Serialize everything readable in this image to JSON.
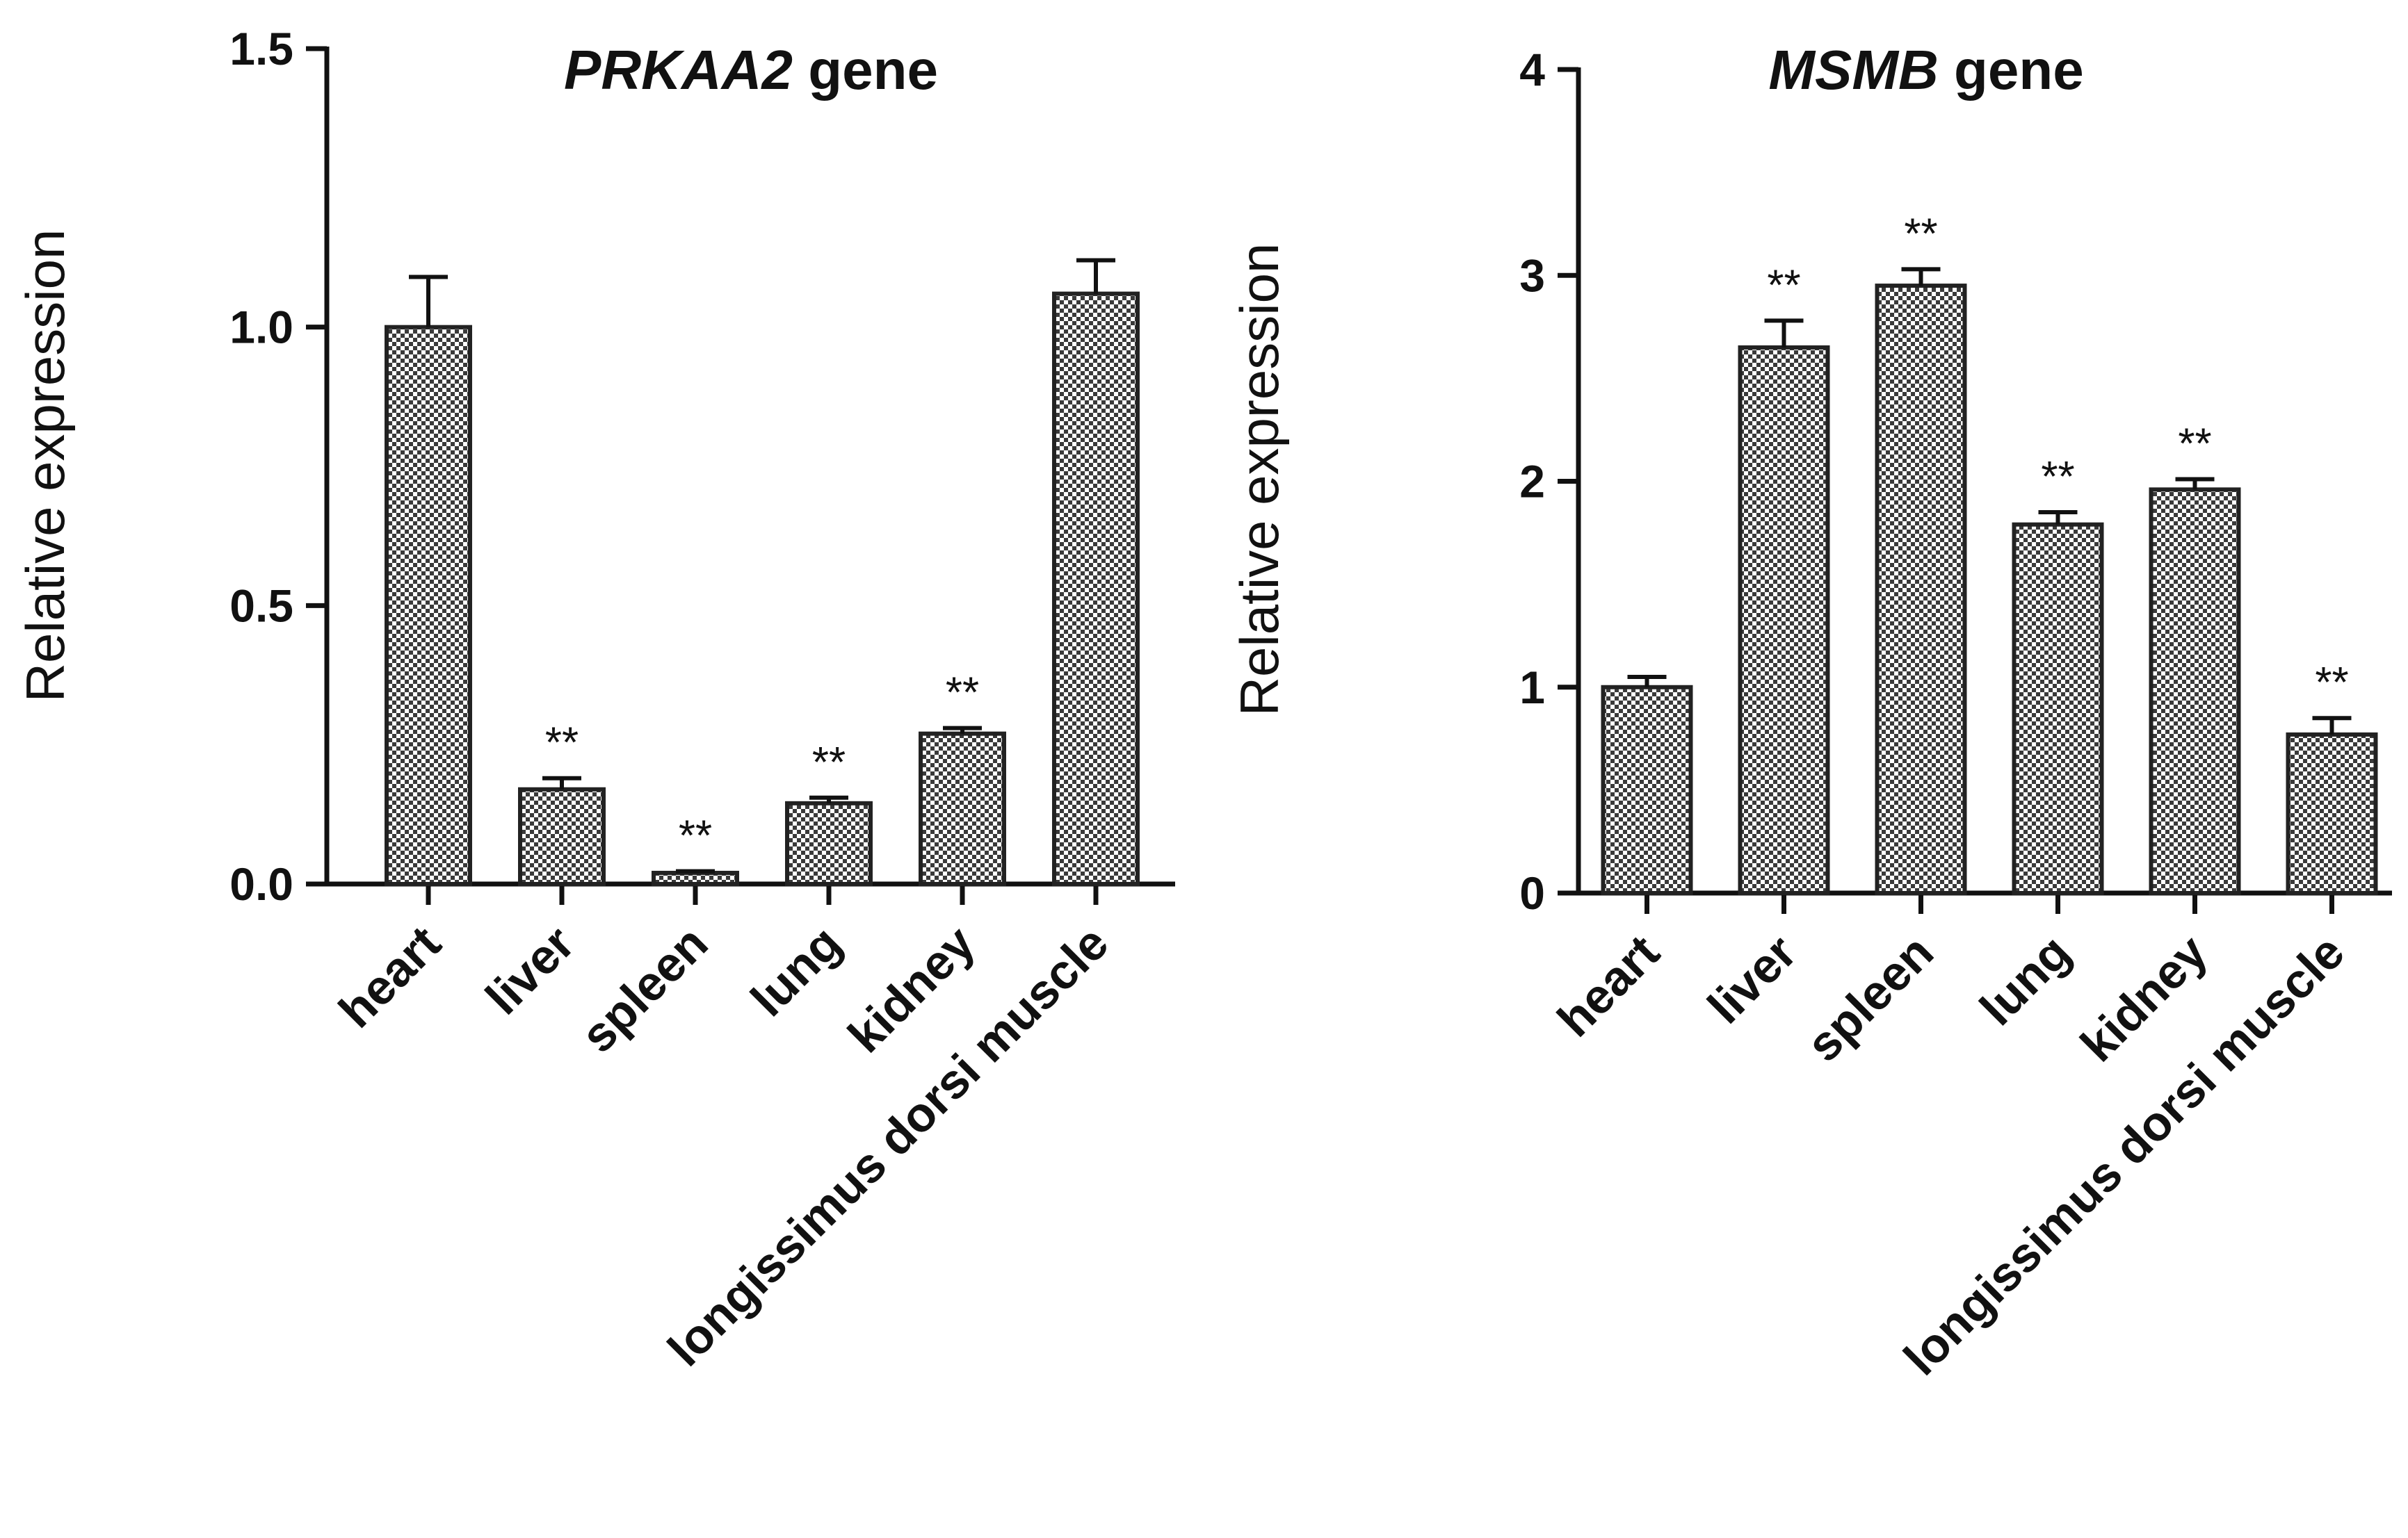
{
  "figure": "Relative expression of PRKAA2 and MSMB genes across tissues",
  "chart_data": [
    {
      "type": "bar",
      "title_italic": "PRKAA2",
      "title_rest": " gene",
      "ylabel": "Relative expression",
      "xlabel": "",
      "ylim": [
        0,
        1.5
      ],
      "yticks": [
        0.0,
        0.5,
        1.0,
        1.5
      ],
      "ytick_labels": [
        "0.0",
        "0.5",
        "1.0",
        "1.5"
      ],
      "categories": [
        "heart",
        "liver",
        "spleen",
        "lung",
        "kidney",
        "longissimus dorsi muscle"
      ],
      "values": [
        1.0,
        0.17,
        0.02,
        0.145,
        0.27,
        1.06
      ],
      "errors": [
        0.09,
        0.02,
        0.003,
        0.01,
        0.01,
        0.06
      ],
      "significance": [
        "",
        "**",
        "**",
        "**",
        "**",
        ""
      ],
      "colors": {
        "axis": "#111111",
        "bar_fill": "#9a9a9a"
      }
    },
    {
      "type": "bar",
      "title_italic": "MSMB",
      "title_rest": " gene",
      "ylabel": "Relative expression",
      "xlabel": "",
      "ylim": [
        0,
        4
      ],
      "yticks": [
        0,
        1,
        2,
        3,
        4
      ],
      "ytick_labels": [
        "0",
        "1",
        "2",
        "3",
        "4"
      ],
      "categories": [
        "heart",
        "liver",
        "spleen",
        "lung",
        "kidney",
        "longissimus dorsi muscle"
      ],
      "values": [
        1.0,
        2.65,
        2.95,
        1.79,
        1.96,
        0.77
      ],
      "errors": [
        0.05,
        0.13,
        0.08,
        0.06,
        0.05,
        0.08
      ],
      "significance": [
        "",
        "**",
        "**",
        "**",
        "**",
        "**"
      ],
      "colors": {
        "axis": "#111111",
        "bar_fill": "#9a9a9a"
      }
    }
  ]
}
